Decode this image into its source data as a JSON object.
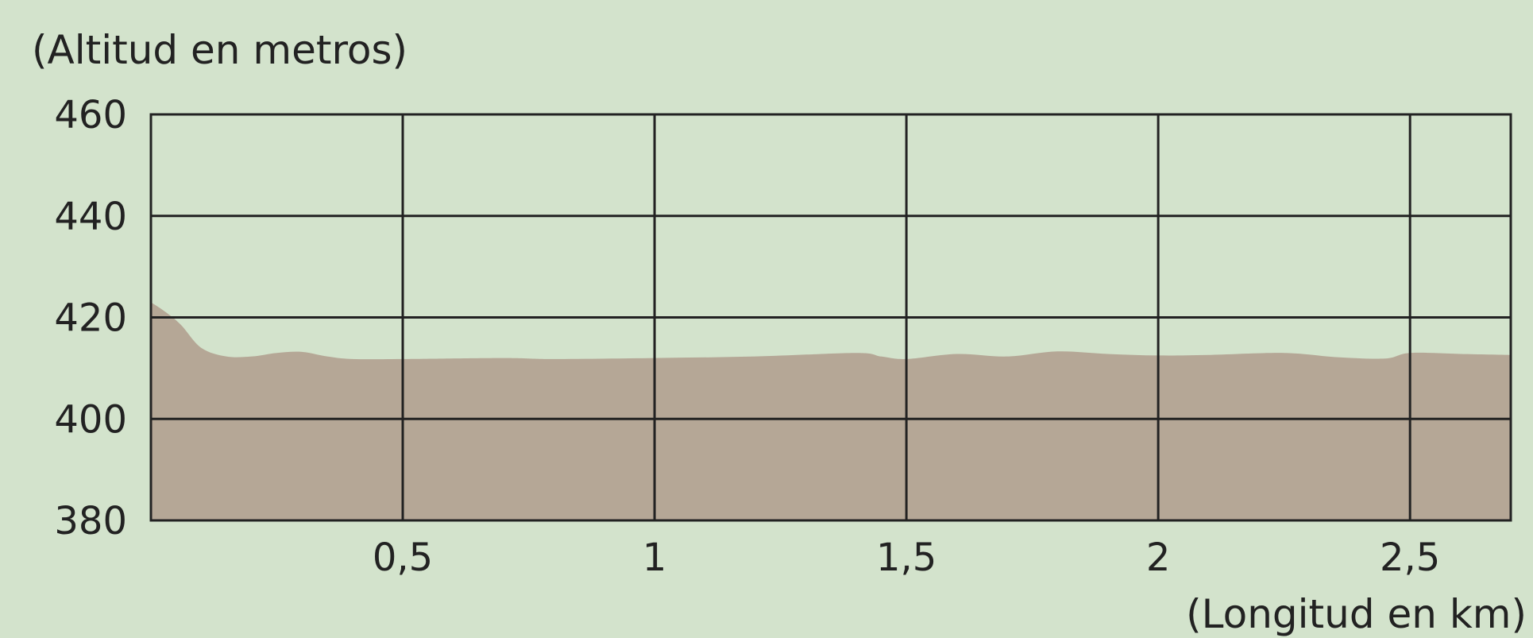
{
  "colors": {
    "background": "#d3e3cc",
    "area_fill": "#b5a796",
    "grid": "#222222",
    "text": "#222222"
  },
  "chart_data": {
    "type": "area",
    "ylabel": "(Altitud en metros)",
    "xlabel": "(Longitud en km)",
    "xlim": [
      0,
      2.7
    ],
    "ylim": [
      380,
      460
    ],
    "x_ticks": [
      0.5,
      1,
      1.5,
      2,
      2.5
    ],
    "x_tick_labels": [
      "0,5",
      "1",
      "1,5",
      "2",
      "2,5"
    ],
    "y_ticks": [
      380,
      400,
      420,
      440,
      460
    ],
    "y_tick_labels": [
      "380",
      "400",
      "420",
      "440",
      "460"
    ],
    "grid": true,
    "series": [
      {
        "x": [
          0,
          0.03,
          0.06,
          0.1,
          0.15,
          0.2,
          0.25,
          0.3,
          0.35,
          0.4,
          0.5,
          0.7,
          0.8,
          1.0,
          1.2,
          1.4,
          1.45,
          1.5,
          1.6,
          1.7,
          1.8,
          1.9,
          2.0,
          2.1,
          2.25,
          2.35,
          2.45,
          2.5,
          2.6,
          2.7
        ],
        "y": [
          423,
          421,
          418.5,
          414,
          412.3,
          412.3,
          413,
          413.2,
          412.3,
          411.8,
          411.8,
          412,
          411.8,
          412,
          412.3,
          413,
          412.3,
          411.8,
          412.8,
          412.3,
          413.3,
          412.8,
          412.5,
          412.6,
          413,
          412.2,
          411.9,
          413,
          412.8,
          412.6
        ]
      }
    ]
  }
}
